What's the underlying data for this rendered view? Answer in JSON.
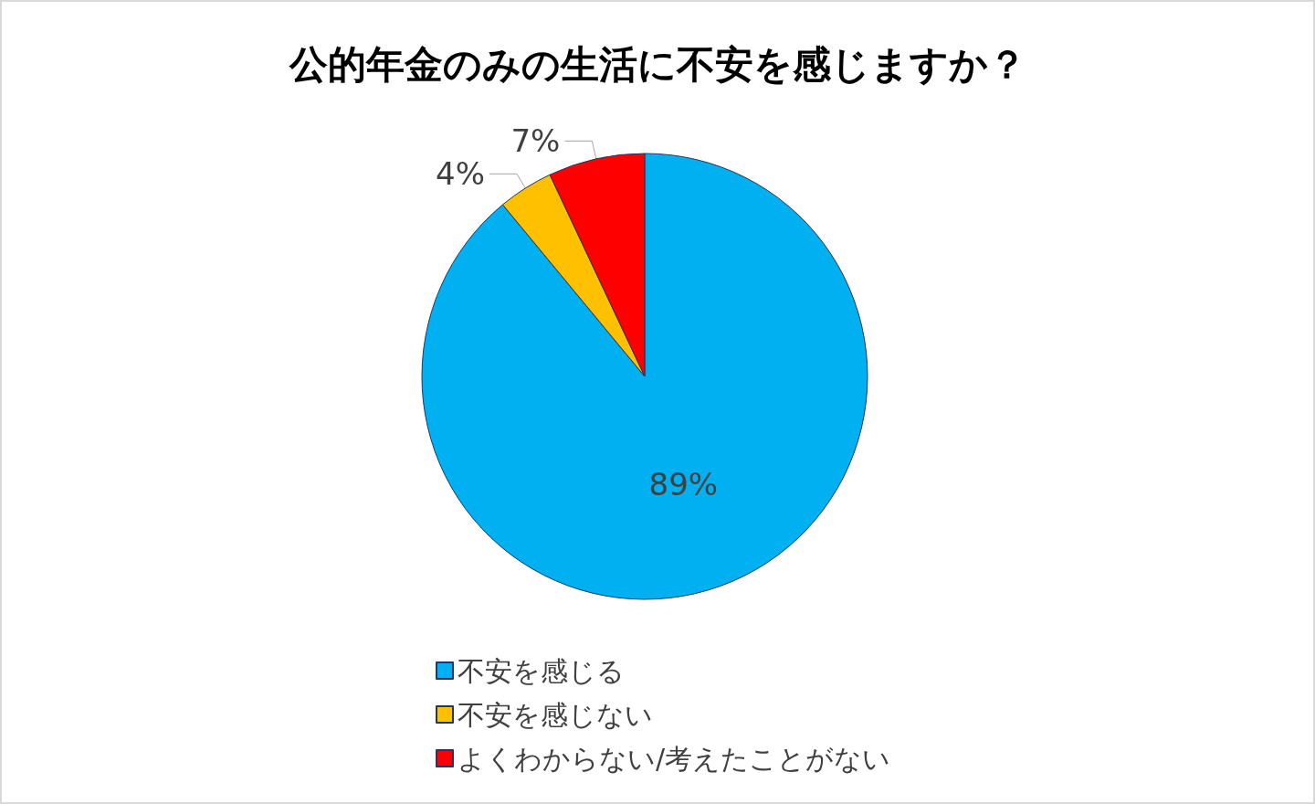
{
  "chart_data": {
    "type": "pie",
    "title": "公的年金のみの生活に不安を感じますか？",
    "categories": [
      "不安を感じる",
      "不安を感じない",
      "よくわからない/考えたことがない"
    ],
    "values": [
      89,
      4,
      7
    ],
    "colors": [
      "#00b0f0",
      "#ffc000",
      "#ff0000"
    ],
    "value_labels": [
      "89%",
      "4%",
      "7%"
    ],
    "legend": "bottom"
  }
}
